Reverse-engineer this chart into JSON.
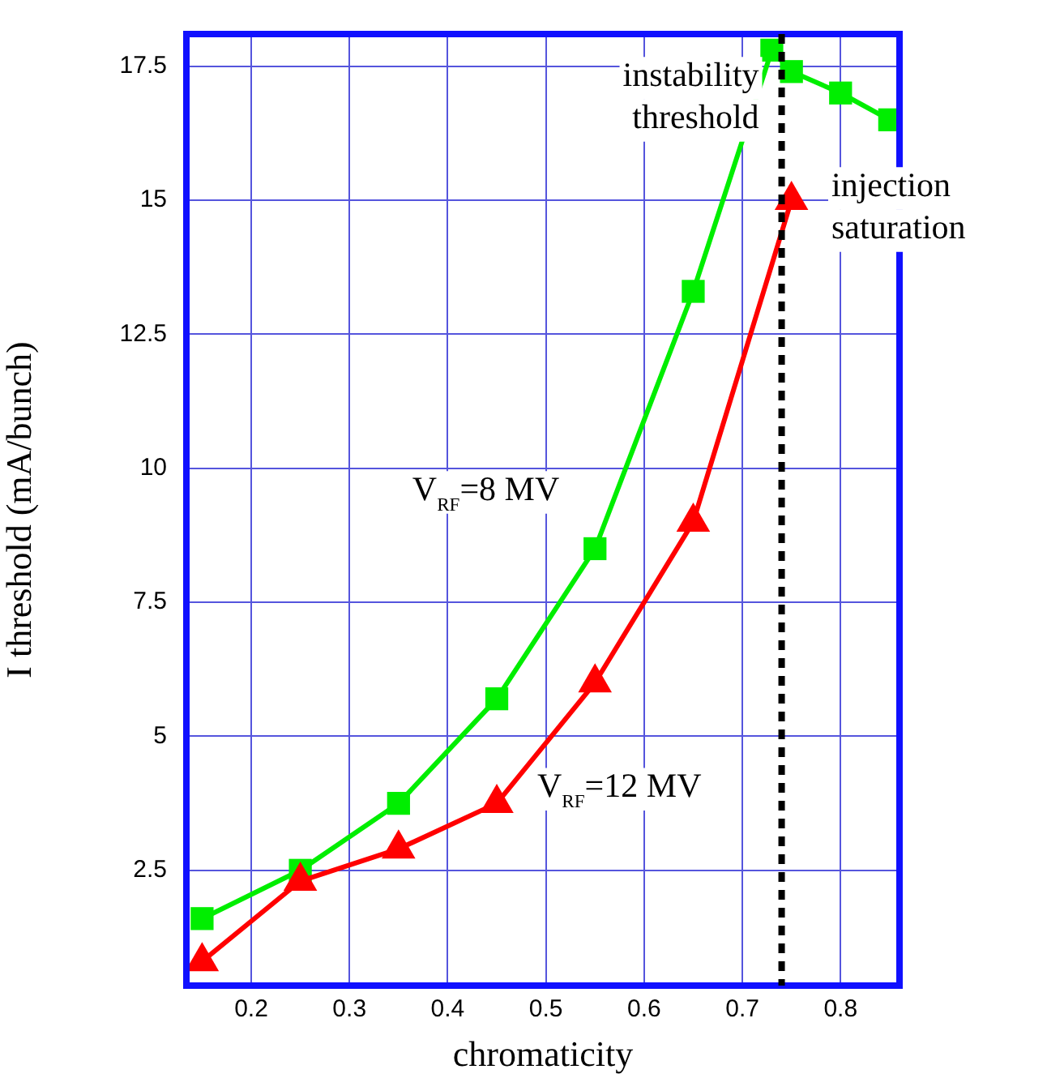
{
  "chart_data": {
    "type": "line",
    "xlabel": "chromaticity",
    "ylabel": "I threshold (mA/bunch)",
    "xlim": [
      0.134,
      0.86
    ],
    "ylim": [
      0.35,
      18.1
    ],
    "xticks": [
      0.2,
      0.3,
      0.4,
      0.5,
      0.6,
      0.7,
      0.8
    ],
    "yticks": [
      2.5,
      5,
      7.5,
      10,
      12.5,
      15,
      17.5
    ],
    "grid": true,
    "legend": false,
    "line_style": "solid",
    "series": [
      {
        "name": "V$_{RF}$=8 MV",
        "color": "#00ee00",
        "marker": "square",
        "x": [
          0.15,
          0.25,
          0.35,
          0.45,
          0.55,
          0.65,
          0.73,
          0.75,
          0.8,
          0.85
        ],
        "values": [
          1.6,
          2.5,
          3.75,
          5.7,
          8.5,
          13.3,
          17.8,
          17.4,
          17.0,
          16.5
        ]
      },
      {
        "name": "V$_{RF}$=12 MV",
        "color": "#ff0000",
        "marker": "triangle",
        "x": [
          0.15,
          0.25,
          0.35,
          0.45,
          0.55,
          0.65,
          0.75
        ],
        "values": [
          0.8,
          2.3,
          2.9,
          3.75,
          6.0,
          9.0,
          15.0
        ]
      }
    ],
    "ref_lines": [
      {
        "axis": "x",
        "value": 0.74,
        "label": "instability threshold",
        "color": "#000000",
        "line_style": "dashed"
      }
    ],
    "annotations": [
      "injection saturation"
    ]
  }
}
